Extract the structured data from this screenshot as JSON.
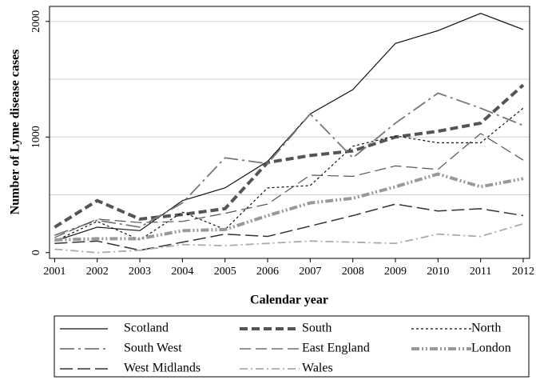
{
  "chart_data": {
    "type": "line",
    "y_label": "Number of Lyme disease cases",
    "x_label": "Calendar year",
    "x": [
      2001,
      2002,
      2003,
      2004,
      2005,
      2006,
      2007,
      2008,
      2009,
      2010,
      2011,
      2012
    ],
    "xlim": [
      2000.88,
      2012.15
    ],
    "xticks": [
      2001,
      2002,
      2003,
      2004,
      2005,
      2006,
      2007,
      2008,
      2009,
      2010,
      2011,
      2012
    ],
    "ylim": [
      -50,
      2130
    ],
    "yticks": [
      0,
      1000,
      2000
    ],
    "grid_values": [
      500,
      1000,
      1500,
      2000
    ],
    "grid": true,
    "legend": "bottom",
    "series": [
      {
        "name": "Scotland",
        "color": "#111111",
        "width": 1.2,
        "dash": "none",
        "values": [
          100,
          220,
          190,
          450,
          560,
          790,
          1200,
          1410,
          1810,
          1920,
          2070,
          1930
        ]
      },
      {
        "name": "South",
        "color": "#555555",
        "width": 4,
        "dash": "10,5",
        "values": [
          220,
          450,
          290,
          330,
          380,
          780,
          840,
          880,
          1000,
          1050,
          1120,
          1450
        ]
      },
      {
        "name": "North",
        "color": "#111111",
        "width": 1.2,
        "dash": "3,3",
        "values": [
          100,
          270,
          110,
          350,
          200,
          560,
          580,
          920,
          1010,
          950,
          950,
          1250
        ]
      },
      {
        "name": "South West",
        "color": "#777777",
        "width": 1.8,
        "dash": "18,5,3,5",
        "values": [
          150,
          280,
          220,
          430,
          820,
          770,
          1200,
          820,
          1120,
          1380,
          1250,
          1100
        ]
      },
      {
        "name": "East England",
        "color": "#555555",
        "width": 1.2,
        "dash": "14,6",
        "values": [
          130,
          290,
          260,
          270,
          340,
          420,
          670,
          660,
          750,
          720,
          1030,
          800
        ]
      },
      {
        "name": "London",
        "color": "#999999",
        "width": 4,
        "dash": "10,3,2,3,2,3",
        "values": [
          110,
          120,
          120,
          190,
          200,
          320,
          430,
          470,
          570,
          680,
          570,
          640
        ]
      },
      {
        "name": "West Midlands",
        "color": "#333333",
        "width": 1.5,
        "dash": "16,6",
        "values": [
          80,
          100,
          20,
          90,
          160,
          140,
          230,
          320,
          420,
          360,
          380,
          320
        ]
      },
      {
        "name": "Wales",
        "color": "#aaaaaa",
        "width": 1.8,
        "dash": "10,4,2,4",
        "values": [
          30,
          0,
          20,
          70,
          60,
          80,
          100,
          90,
          80,
          160,
          140,
          250
        ]
      }
    ]
  }
}
